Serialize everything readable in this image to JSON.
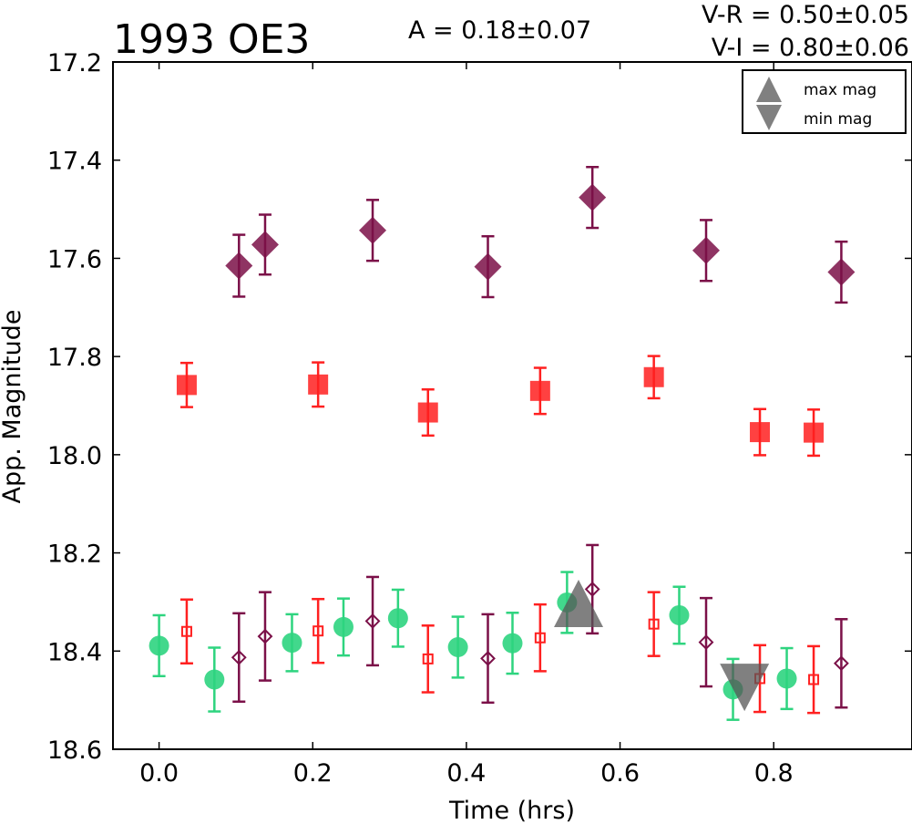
{
  "chart_data": {
    "type": "scatter",
    "title": "1993 OE3",
    "annotations": {
      "amplitude": "A  = 0.18±0.07",
      "v_r": "V-R = 0.50±0.05",
      "v_i": "V-I  = 0.80±0.06"
    },
    "xlabel": "Time (hrs)",
    "ylabel": "App. Magnitude",
    "xlim": [
      -0.06,
      0.98
    ],
    "ylim": [
      18.6,
      17.2
    ],
    "y_inverted": true,
    "xticks": [
      0.0,
      0.2,
      0.4,
      0.6,
      0.8
    ],
    "xtick_labels": [
      "0.0",
      "0.2",
      "0.4",
      "0.6",
      "0.8"
    ],
    "yticks": [
      17.2,
      17.4,
      17.6,
      17.8,
      18.0,
      18.2,
      18.4,
      18.6
    ],
    "ytick_labels": [
      "17.2",
      "17.4",
      "17.6",
      "17.8",
      "18.0",
      "18.2",
      "18.4",
      "18.6"
    ],
    "grid": false,
    "legend": {
      "placement": "top-right",
      "entries": [
        {
          "label": "max mag",
          "marker": "triangle-up"
        },
        {
          "label": "min mag",
          "marker": "triangle-down"
        }
      ]
    },
    "colors": {
      "green": "#2ed47f",
      "red": "#ff2020",
      "purple": "#7b1048",
      "gray": "#555555"
    },
    "series": [
      {
        "marker": "diamond-filled",
        "color": "#7b1048",
        "points": [
          {
            "x": 0.104,
            "y": 17.615,
            "err": 0.063
          },
          {
            "x": 0.138,
            "y": 17.572,
            "err": 0.061
          },
          {
            "x": 0.278,
            "y": 17.543,
            "err": 0.062
          },
          {
            "x": 0.428,
            "y": 17.617,
            "err": 0.062
          },
          {
            "x": 0.564,
            "y": 17.476,
            "err": 0.062
          },
          {
            "x": 0.712,
            "y": 17.584,
            "err": 0.062
          },
          {
            "x": 0.888,
            "y": 17.628,
            "err": 0.062
          }
        ]
      },
      {
        "marker": "square-filled",
        "color": "#ff2020",
        "points": [
          {
            "x": 0.036,
            "y": 17.858,
            "err": 0.045
          },
          {
            "x": 0.207,
            "y": 17.857,
            "err": 0.045
          },
          {
            "x": 0.35,
            "y": 17.914,
            "err": 0.047
          },
          {
            "x": 0.496,
            "y": 17.87,
            "err": 0.047
          },
          {
            "x": 0.644,
            "y": 17.842,
            "err": 0.043
          },
          {
            "x": 0.782,
            "y": 17.954,
            "err": 0.047
          },
          {
            "x": 0.852,
            "y": 17.955,
            "err": 0.047
          }
        ]
      },
      {
        "marker": "circle-filled",
        "color": "#2ed47f",
        "points": [
          {
            "x": 0.0,
            "y": 18.389,
            "err": 0.062
          },
          {
            "x": 0.072,
            "y": 18.458,
            "err": 0.065
          },
          {
            "x": 0.173,
            "y": 18.383,
            "err": 0.058
          },
          {
            "x": 0.24,
            "y": 18.351,
            "err": 0.058
          },
          {
            "x": 0.311,
            "y": 18.333,
            "err": 0.058
          },
          {
            "x": 0.389,
            "y": 18.392,
            "err": 0.062
          },
          {
            "x": 0.46,
            "y": 18.384,
            "err": 0.062
          },
          {
            "x": 0.531,
            "y": 18.301,
            "err": 0.062
          },
          {
            "x": 0.677,
            "y": 18.327,
            "err": 0.058
          },
          {
            "x": 0.747,
            "y": 18.478,
            "err": 0.062
          },
          {
            "x": 0.817,
            "y": 18.456,
            "err": 0.062
          }
        ]
      },
      {
        "marker": "square-open",
        "color": "#ff2020",
        "points": [
          {
            "x": 0.036,
            "y": 18.36,
            "err": 0.065
          },
          {
            "x": 0.207,
            "y": 18.359,
            "err": 0.065
          },
          {
            "x": 0.35,
            "y": 18.416,
            "err": 0.068
          },
          {
            "x": 0.496,
            "y": 18.373,
            "err": 0.068
          },
          {
            "x": 0.644,
            "y": 18.345,
            "err": 0.065
          },
          {
            "x": 0.782,
            "y": 18.456,
            "err": 0.068
          },
          {
            "x": 0.852,
            "y": 18.458,
            "err": 0.068
          }
        ]
      },
      {
        "marker": "diamond-open",
        "color": "#7b1048",
        "points": [
          {
            "x": 0.104,
            "y": 18.413,
            "err": 0.09
          },
          {
            "x": 0.138,
            "y": 18.37,
            "err": 0.09
          },
          {
            "x": 0.278,
            "y": 18.339,
            "err": 0.09
          },
          {
            "x": 0.428,
            "y": 18.415,
            "err": 0.09
          },
          {
            "x": 0.564,
            "y": 18.274,
            "err": 0.09
          },
          {
            "x": 0.712,
            "y": 18.382,
            "err": 0.09
          },
          {
            "x": 0.888,
            "y": 18.425,
            "err": 0.09
          }
        ]
      }
    ],
    "extrema": [
      {
        "label": "max mag",
        "x": 0.546,
        "y": 18.303
      },
      {
        "label": "min mag",
        "x": 0.762,
        "y": 18.474
      }
    ]
  }
}
